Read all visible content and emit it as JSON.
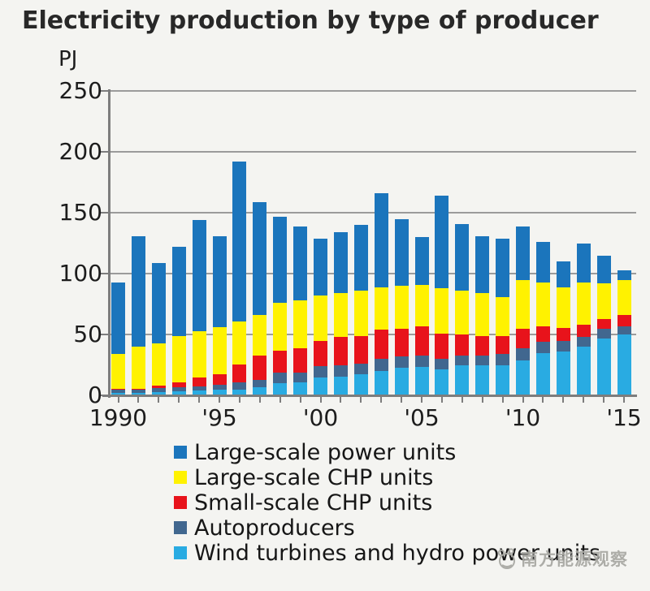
{
  "title": "Electricity production by type of producer",
  "watermark": {
    "text": "南方能源观察"
  },
  "chart_data": {
    "type": "bar",
    "stacked": true,
    "title": "Electricity production by type of producer",
    "ylabel": "PJ",
    "xlabel": "",
    "grid": true,
    "legend_position": "bottom-left",
    "ylim": [
      0,
      250
    ],
    "y_ticks": [
      0,
      50,
      100,
      150,
      200,
      250
    ],
    "x_tick_labels": [
      "1990",
      "'95",
      "'00",
      "'05",
      "'10",
      "'15"
    ],
    "x_tick_years": [
      1990,
      1995,
      2000,
      2005,
      2010,
      2015
    ],
    "years": [
      1990,
      1991,
      1992,
      1993,
      1994,
      1995,
      1996,
      1997,
      1998,
      1999,
      2000,
      2001,
      2002,
      2003,
      2004,
      2005,
      2006,
      2007,
      2008,
      2009,
      2010,
      2011,
      2012,
      2013,
      2014,
      2015
    ],
    "series": [
      {
        "name": "Wind turbines and hydro power units",
        "color": "#29abe2",
        "values": [
          2,
          2,
          3,
          3.5,
          4,
          4.5,
          4.5,
          7,
          10,
          11,
          15,
          15.5,
          17.5,
          20,
          23,
          23.5,
          21.5,
          25,
          25,
          25,
          29,
          35,
          36,
          40,
          47,
          50
        ]
      },
      {
        "name": "Autoproducers",
        "color": "#41678f",
        "values": [
          3,
          2.5,
          3,
          3,
          3.5,
          4,
          6,
          6,
          9,
          8,
          9,
          9.5,
          8.5,
          10,
          9,
          9.5,
          8.5,
          8,
          8,
          9,
          10,
          9,
          9,
          8,
          8,
          7
        ]
      },
      {
        "name": "Small-scale CHP units",
        "color": "#e8131b",
        "values": [
          0.5,
          1,
          2,
          4,
          7,
          9,
          15,
          20,
          18,
          20,
          21,
          23,
          23,
          24,
          22.5,
          23.5,
          21,
          17,
          15.5,
          15,
          15.5,
          12.5,
          10.5,
          10,
          8,
          9
        ]
      },
      {
        "name": "Large-scale CHP units",
        "color": "#fff200",
        "values": [
          28.5,
          34.5,
          35,
          38.5,
          38.5,
          38.5,
          35.5,
          33,
          39,
          39,
          37,
          36,
          37,
          35,
          35.5,
          34.5,
          37,
          36,
          35.5,
          32,
          40.5,
          36.5,
          33.5,
          35,
          29,
          29
        ]
      },
      {
        "name": "Large-scale power units",
        "color": "#1b75bc",
        "values": [
          59,
          91,
          66,
          73,
          91,
          75,
          131,
          93,
          71,
          61,
          47,
          50,
          54,
          77,
          55,
          39,
          76,
          55,
          47,
          48,
          44,
          33,
          21,
          32,
          23,
          8
        ]
      }
    ],
    "totals": [
      93,
      131,
      109,
      122,
      144,
      131,
      192,
      159,
      147,
      139,
      129,
      134,
      140,
      166,
      145,
      130,
      164,
      141,
      131,
      129,
      139,
      126,
      110,
      125,
      115,
      103
    ],
    "legend": [
      {
        "label": "Large-scale power units",
        "color": "#1b75bc"
      },
      {
        "label": "Large-scale CHP units",
        "color": "#fff200"
      },
      {
        "label": "Small-scale CHP units",
        "color": "#e8131b"
      },
      {
        "label": "Autoproducers",
        "color": "#41678f"
      },
      {
        "label": "Wind turbines and hydro power units",
        "color": "#29abe2"
      }
    ],
    "colors": {
      "grid": "#9b9b9b",
      "axis": "#7d7d7d",
      "text": "#1c1c1c",
      "watermark": "#a8a8a2"
    }
  }
}
